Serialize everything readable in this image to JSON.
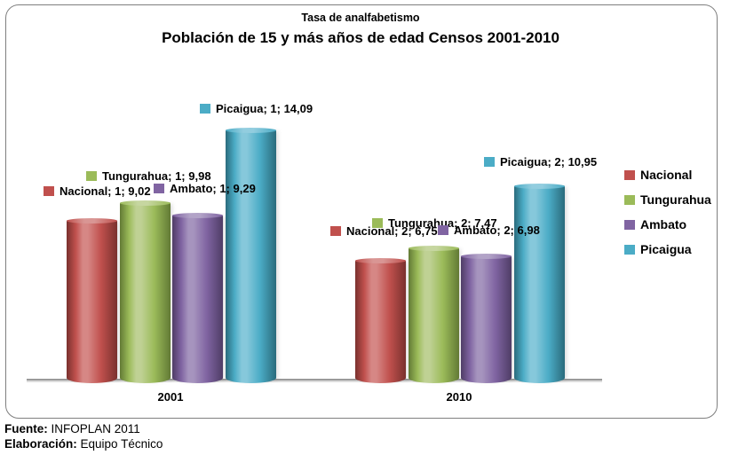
{
  "title": {
    "line1": "Tasa de analfabetismo",
    "line2": "Población de 15 y más años de edad Censos 2001-2010"
  },
  "chart_data": {
    "type": "bar",
    "categories": [
      "2001",
      "2010"
    ],
    "series": [
      {
        "name": "Nacional",
        "color": "#C0504D",
        "color_dark": "#7A312E",
        "color_light": "#D68785",
        "color_cap": "#D99694",
        "values": [
          9.02,
          6.75
        ],
        "labels": [
          "Nacional; 1; 9,02",
          "Nacional; 2; 6,75"
        ]
      },
      {
        "name": "Tungurahua",
        "color": "#9BBB59",
        "color_dark": "#627A35",
        "color_light": "#BFD194",
        "color_cap": "#C6D6A0",
        "values": [
          9.98,
          7.47
        ],
        "labels": [
          "Tungurahua; 1; 9,98",
          "Tungurahua; 2; 7,47"
        ]
      },
      {
        "name": "Ambato",
        "color": "#8064A2",
        "color_dark": "#4F3D66",
        "color_light": "#A694BE",
        "color_cap": "#B2A3C7",
        "values": [
          9.29,
          6.98
        ],
        "labels": [
          "Ambato; 1; 9,29",
          "Ambato; 2; 6,98"
        ]
      },
      {
        "name": "Picaigua",
        "color": "#4BACC6",
        "color_dark": "#2A6B7C",
        "color_light": "#86C8DB",
        "color_cap": "#92CDDF",
        "values": [
          14.09,
          10.95
        ],
        "labels": [
          "Picaigua; 1; 14,09",
          "Picaigua; 2; 10,95"
        ]
      }
    ],
    "legend_position": "right",
    "ylim": [
      0,
      15
    ],
    "grid": false,
    "y_axis_visible": false
  },
  "footer": {
    "source_label": "Fuente:",
    "source_value": "INFOPLAN 2011",
    "elaboration_label": "Elaboración:",
    "elaboration_value": "Equipo Técnico"
  }
}
